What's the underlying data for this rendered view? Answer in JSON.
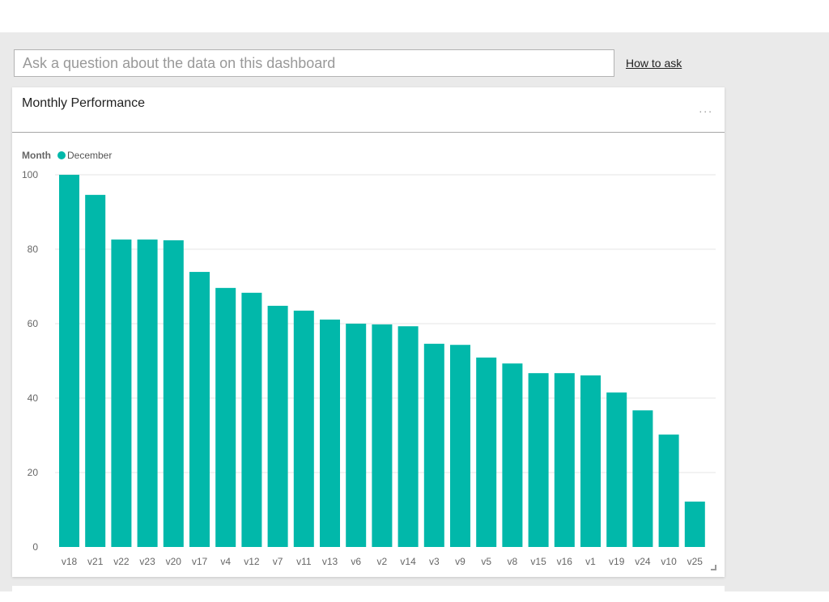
{
  "qa": {
    "placeholder": "Ask a question about the data on this dashboard",
    "how_to_ask": "How to ask"
  },
  "tile": {
    "title": "Monthly Performance",
    "more": "..."
  },
  "colors": {
    "bar": "#01b8aa",
    "grid": "#e6e6e6"
  },
  "chart_data": {
    "type": "bar",
    "title": "Monthly Performance",
    "legend_title": "Month",
    "legend": [
      "December"
    ],
    "legend_position": "top-left",
    "categories": [
      "v18",
      "v21",
      "v22",
      "v23",
      "v20",
      "v17",
      "v4",
      "v12",
      "v7",
      "v11",
      "v13",
      "v6",
      "v2",
      "v14",
      "v3",
      "v9",
      "v5",
      "v8",
      "v15",
      "v16",
      "v1",
      "v19",
      "v24",
      "v10",
      "v25"
    ],
    "series": [
      {
        "name": "December",
        "values": [
          100,
          94.6,
          82.6,
          82.6,
          82.4,
          73.9,
          69.6,
          68.3,
          64.8,
          63.5,
          61.1,
          60.0,
          59.8,
          59.3,
          54.6,
          54.3,
          50.9,
          49.3,
          46.7,
          46.7,
          46.1,
          41.5,
          36.7,
          30.2,
          12.2
        ]
      }
    ],
    "yticks": [
      "0",
      "20",
      "40",
      "60",
      "80",
      "100"
    ],
    "ylim": [
      0,
      100
    ],
    "grid": true
  }
}
